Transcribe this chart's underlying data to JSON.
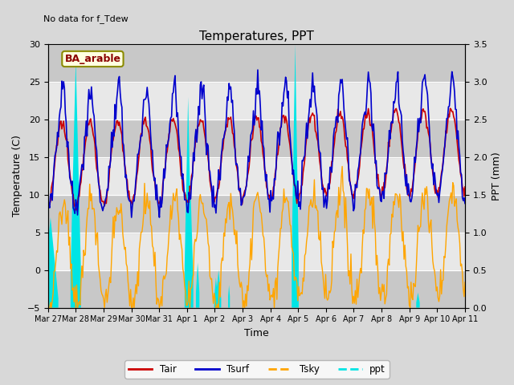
{
  "title": "Temperatures, PPT",
  "subtitle": "No data for f_Tdew",
  "annotation": "BA_arable",
  "xlabel": "Time",
  "ylabel_left": "Temperature (C)",
  "ylabel_right": "PPT (mm)",
  "ylim_left": [
    -5,
    30
  ],
  "ylim_right": [
    0.0,
    3.5
  ],
  "yticks_left": [
    -5,
    0,
    5,
    10,
    15,
    20,
    25,
    30
  ],
  "yticks_right": [
    0.0,
    0.5,
    1.0,
    1.5,
    2.0,
    2.5,
    3.0,
    3.5
  ],
  "xtick_labels": [
    "Mar 27",
    "Mar 28",
    "Mar 29",
    "Mar 30",
    "Mar 31",
    "Apr 1",
    "Apr 2",
    "Apr 3",
    "Apr 4",
    "Apr 5",
    "Apr 6",
    "Apr 7",
    "Apr 8",
    "Apr 9",
    "Apr 10",
    "Apr 11"
  ],
  "fig_bg_color": "#d8d8d8",
  "plot_bg_color": "#e8e8e8",
  "band_dark_color": "#c8c8c8",
  "tair_color": "#cc0000",
  "tsurf_color": "#0000cc",
  "tsky_color": "#ffa500",
  "ppt_color": "#00e5e5",
  "grid_color": "#ffffff",
  "n_points": 480
}
